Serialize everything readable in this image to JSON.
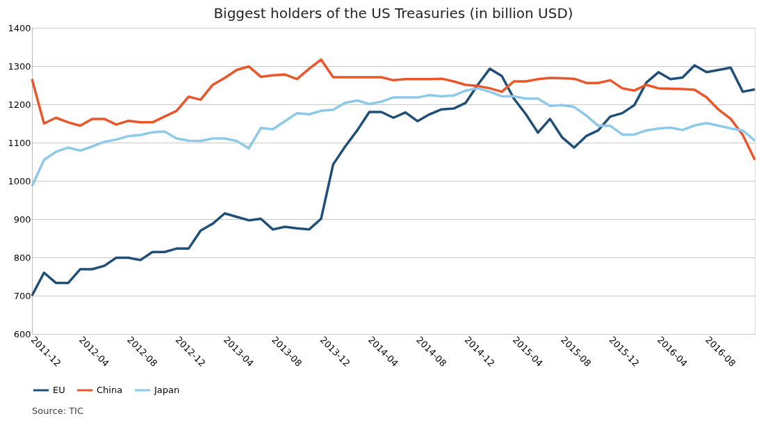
{
  "chart_data": {
    "type": "line",
    "title": "Biggest holders of the US Treasuries (in billion USD)",
    "categories": [
      "2011-12",
      null,
      null,
      null,
      "2012-04",
      null,
      null,
      null,
      "2012-08",
      null,
      null,
      null,
      "2012-12",
      null,
      null,
      null,
      "2013-04",
      null,
      null,
      null,
      "2013-08",
      null,
      null,
      null,
      "2013-12",
      null,
      null,
      null,
      "2014-04",
      null,
      null,
      null,
      "2014-08",
      null,
      null,
      null,
      "2014-12",
      null,
      null,
      null,
      "2015-04",
      null,
      null,
      null,
      "2015-08",
      null,
      null,
      null,
      "2015-12",
      null,
      null,
      null,
      "2016-04",
      null,
      null,
      null,
      "2016-08",
      null,
      null,
      null,
      null
    ],
    "series": [
      {
        "name": "EU",
        "color": "#1f4e79",
        "values": [
          700,
          760,
          733,
          733,
          769,
          769,
          778,
          799,
          799,
          793,
          814,
          814,
          823,
          823,
          870,
          888,
          915,
          906,
          897,
          901,
          873,
          880,
          876,
          873,
          901,
          1043,
          1090,
          1132,
          1180,
          1180,
          1165,
          1179,
          1156,
          1174,
          1187,
          1189,
          1204,
          1251,
          1293,
          1274,
          1215,
          1174,
          1126,
          1162,
          1114,
          1087,
          1117,
          1132,
          1168,
          1177,
          1198,
          1257,
          1284,
          1266,
          1270,
          1302,
          1284,
          1290,
          1296,
          1233,
          1239
        ]
      },
      {
        "name": "China",
        "color": "#e8562a",
        "values": [
          1266,
          1150,
          1165,
          1153,
          1144,
          1162,
          1162,
          1147,
          1157,
          1153,
          1153,
          1168,
          1183,
          1220,
          1212,
          1251,
          1269,
          1290,
          1299,
          1272,
          1276,
          1278,
          1266,
          1293,
          1317,
          1271,
          1271,
          1271,
          1271,
          1271,
          1263,
          1266,
          1266,
          1266,
          1267,
          1260,
          1251,
          1248,
          1242,
          1233,
          1260,
          1260,
          1266,
          1269,
          1268,
          1267,
          1256,
          1256,
          1263,
          1242,
          1236,
          1251,
          1242,
          1241,
          1240,
          1238,
          1218,
          1186,
          1162,
          1120,
          1055
        ]
      },
      {
        "name": "Japan",
        "color": "#8ec9ea",
        "values": [
          986,
          1055,
          1076,
          1087,
          1079,
          1090,
          1102,
          1108,
          1117,
          1120,
          1127,
          1129,
          1111,
          1105,
          1104,
          1111,
          1111,
          1104,
          1085,
          1138,
          1135,
          1156,
          1177,
          1174,
          1183,
          1186,
          1204,
          1210,
          1201,
          1207,
          1218,
          1218,
          1218,
          1224,
          1221,
          1223,
          1236,
          1242,
          1233,
          1221,
          1221,
          1215,
          1215,
          1196,
          1198,
          1193,
          1171,
          1144,
          1144,
          1121,
          1121,
          1132,
          1137,
          1139,
          1133,
          1145,
          1151,
          1144,
          1137,
          1132,
          1105
        ]
      }
    ],
    "ylim": [
      600,
      1400
    ],
    "yticks": [
      600,
      700,
      800,
      900,
      1000,
      1100,
      1200,
      1300,
      1400
    ],
    "grid": "y",
    "legend": "bottom",
    "marker": "none",
    "line_style": "solid",
    "annotations": [
      "Source: TIC"
    ]
  }
}
